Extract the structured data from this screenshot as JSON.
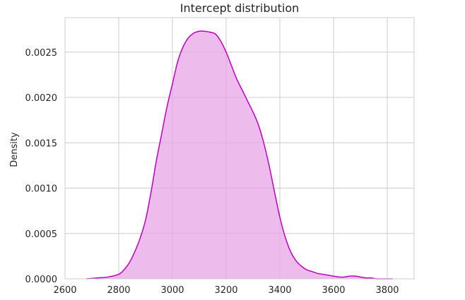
{
  "chart_data": {
    "type": "area",
    "title": "Intercept distribution",
    "xlabel": "",
    "ylabel": "Density",
    "xlim": [
      2600,
      3900
    ],
    "ylim": [
      0,
      0.00288
    ],
    "x_ticks": [
      2600,
      2800,
      3000,
      3200,
      3400,
      3600,
      3800
    ],
    "x_tick_labels": [
      "2600",
      "2800",
      "3000",
      "3200",
      "3400",
      "3600",
      "3800"
    ],
    "y_ticks": [
      0.0,
      0.0005,
      0.001,
      0.0015,
      0.002,
      0.0025
    ],
    "y_tick_labels": [
      "0.0000",
      "0.0005",
      "0.0010",
      "0.0015",
      "0.0020",
      "0.0025"
    ],
    "grid": true,
    "series": [
      {
        "x": [
          2680,
          2720,
          2760,
          2800,
          2820,
          2840,
          2860,
          2880,
          2900,
          2920,
          2940,
          2960,
          2980,
          3000,
          3020,
          3040,
          3060,
          3080,
          3100,
          3120,
          3140,
          3160,
          3180,
          3200,
          3220,
          3240,
          3260,
          3280,
          3300,
          3320,
          3340,
          3360,
          3380,
          3400,
          3420,
          3440,
          3460,
          3480,
          3500,
          3520,
          3540,
          3560,
          3580,
          3600,
          3620,
          3640,
          3660,
          3680,
          3700,
          3720,
          3740,
          3760,
          3780,
          3800,
          3820
        ],
        "values": [
          0.0,
          1e-05,
          2e-05,
          5e-05,
          0.0001,
          0.00018,
          0.0003,
          0.00045,
          0.00065,
          0.00095,
          0.0013,
          0.0016,
          0.0019,
          0.00215,
          0.0024,
          0.00256,
          0.00266,
          0.00271,
          0.00273,
          0.00273,
          0.00272,
          0.0027,
          0.00262,
          0.0025,
          0.00235,
          0.0022,
          0.00208,
          0.00196,
          0.00184,
          0.0017,
          0.0015,
          0.00125,
          0.00096,
          0.00068,
          0.00046,
          0.0003,
          0.0002,
          0.00014,
          0.0001,
          8e-05,
          6e-05,
          5e-05,
          4e-05,
          3e-05,
          2e-05,
          2e-05,
          3e-05,
          3e-05,
          2e-05,
          1e-05,
          1e-05,
          0.0,
          0.0,
          0.0,
          0.0
        ],
        "color": "#bf00bf",
        "fill_color": "#e7a6e7",
        "fill_opacity": 0.75
      }
    ]
  }
}
